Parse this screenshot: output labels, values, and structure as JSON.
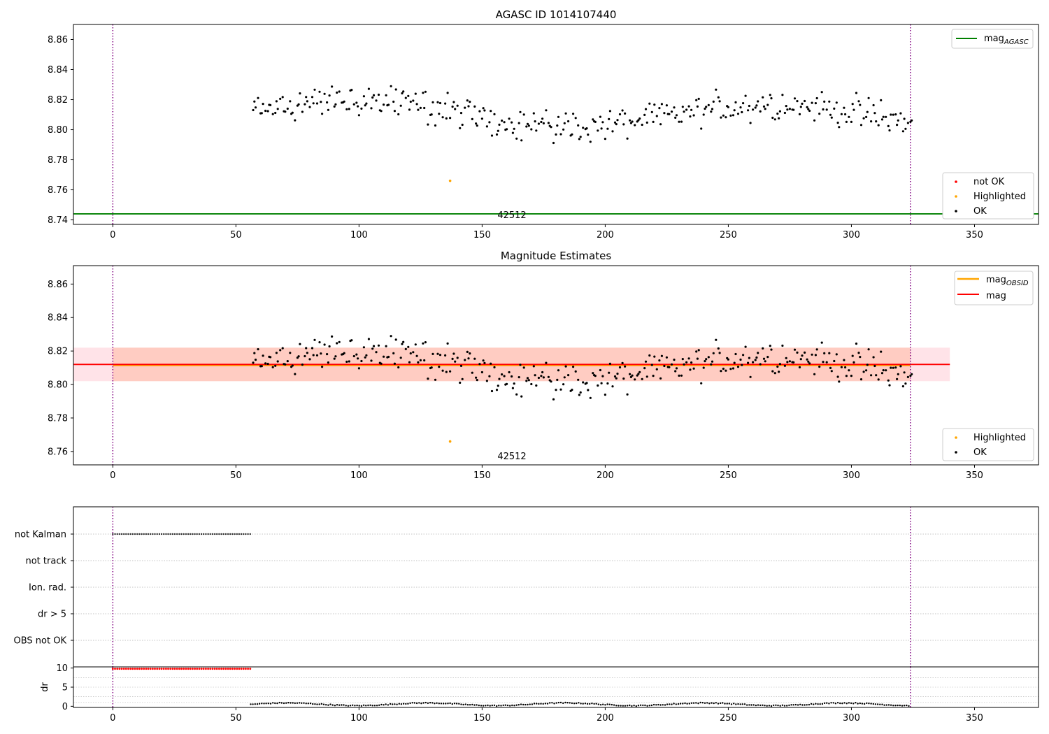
{
  "figure": {
    "title_top": "AGASC ID 1014107440",
    "title_middle": "Magnitude Estimates"
  },
  "colors": {
    "ok": "#000000",
    "not_ok": "#ff0000",
    "highlighted": "#ffa500",
    "mag_agasc": "#008000",
    "mag_obsid": "#ffa500",
    "mag": "#ff0000",
    "band_outer": "#ffc0cb",
    "band_inner": "#ffa07a",
    "obs_boundary": "#800080",
    "grid": "#b0b0b0"
  },
  "chart_data": [
    {
      "type": "scatter",
      "title": "AGASC ID 1014107440",
      "xlim": [
        -16,
        376
      ],
      "ylim": [
        8.737,
        8.87
      ],
      "xticks": [
        0,
        50,
        100,
        150,
        200,
        250,
        300,
        350
      ],
      "yticks": [
        8.74,
        8.76,
        8.78,
        8.8,
        8.82,
        8.84,
        8.86
      ],
      "vlines": [
        0,
        324
      ],
      "hline": {
        "name": "mag_AGASC",
        "value": 8.744,
        "x_range": [
          -16,
          376
        ]
      },
      "annotation": {
        "text": "42512",
        "x": 162,
        "y": 8.74
      },
      "legend_upper": {
        "position": "top-right",
        "entries": [
          {
            "label": "mag",
            "sub": "AGASC",
            "kind": "line",
            "color": "#008000"
          }
        ]
      },
      "legend_lower": {
        "position": "bottom-right",
        "entries": [
          {
            "label": "not OK",
            "kind": "point",
            "color": "#ff0000"
          },
          {
            "label": "Highlighted",
            "kind": "point",
            "color": "#ffa500"
          },
          {
            "label": "OK",
            "kind": "point",
            "color": "#000000"
          }
        ]
      },
      "highlighted": [
        {
          "x": 137,
          "y": 8.766
        }
      ],
      "series_x_range": [
        57,
        324
      ],
      "series_mean": 8.812
    },
    {
      "type": "scatter",
      "title": "Magnitude Estimates",
      "xlim": [
        -16,
        376
      ],
      "ylim": [
        8.752,
        8.871
      ],
      "xticks": [
        0,
        50,
        100,
        150,
        200,
        250,
        300,
        350
      ],
      "yticks": [
        8.76,
        8.78,
        8.8,
        8.82,
        8.84,
        8.86
      ],
      "vlines": [
        0,
        324
      ],
      "mag_obsid": {
        "value": 8.8115,
        "x_range": [
          0,
          324
        ]
      },
      "mag": {
        "value": 8.812,
        "x_range": [
          -16,
          340
        ]
      },
      "band_outer": {
        "lo": 8.802,
        "hi": 8.822,
        "x_range": [
          -16,
          340
        ]
      },
      "band_inner": {
        "lo": 8.802,
        "hi": 8.822,
        "x_range": [
          0,
          324
        ]
      },
      "annotation": {
        "text": "42512",
        "x": 162,
        "y": 8.756
      },
      "legend_upper": {
        "position": "top-right",
        "entries": [
          {
            "label": "mag",
            "sub": "OBSID",
            "kind": "line",
            "color": "#ffa500"
          },
          {
            "label": "mag",
            "sub": "",
            "kind": "line",
            "color": "#ff0000"
          }
        ]
      },
      "legend_lower": {
        "position": "bottom-right",
        "entries": [
          {
            "label": "Highlighted",
            "kind": "point",
            "color": "#ffa500"
          },
          {
            "label": "OK",
            "kind": "point",
            "color": "#000000"
          }
        ]
      },
      "highlighted": [
        {
          "x": 137,
          "y": 8.766
        }
      ]
    },
    {
      "type": "scatter",
      "title": "",
      "xlim": [
        -16,
        376
      ],
      "categories": [
        "not Kalman",
        "not track",
        "Ion. rad.",
        "dr > 5",
        "OBS not OK"
      ],
      "flag_points": {
        "category": "not Kalman",
        "x_range": [
          0,
          56
        ]
      }
    },
    {
      "type": "scatter",
      "title": "",
      "xlim": [
        -16,
        376
      ],
      "ylim": [
        -0.3,
        10.3
      ],
      "xticks": [
        0,
        50,
        100,
        150,
        200,
        250,
        300,
        350
      ],
      "yticks": [
        0,
        5,
        10
      ],
      "ylabel": "dr",
      "high_points": {
        "value": 9.8,
        "x_range": [
          0,
          56
        ],
        "color": "#ff0000"
      },
      "low_points": {
        "x_range": [
          56,
          324
        ]
      }
    }
  ]
}
